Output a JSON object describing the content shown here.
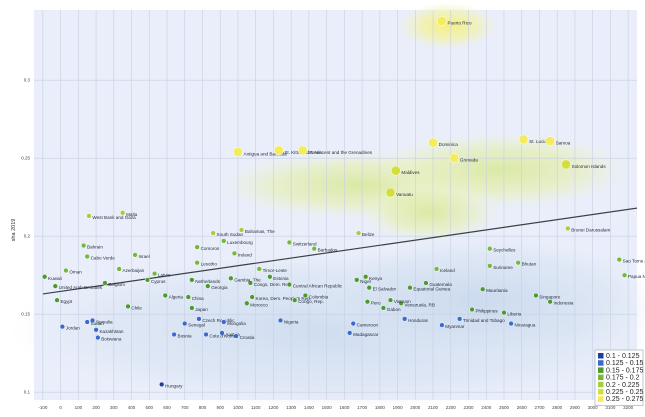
{
  "chart_data": {
    "type": "scatter",
    "ylabel": "sha 2019",
    "xlim": [
      -150,
      3250
    ],
    "ylim": [
      0.095,
      0.345
    ],
    "x_ticks": [
      "-100",
      "0",
      "100",
      "200",
      "300",
      "400",
      "500",
      "600",
      "700",
      "800",
      "900",
      "1000",
      "1100",
      "1200",
      "1300",
      "1400",
      "1500",
      "1600",
      "1700",
      "1800",
      "1900",
      "2000",
      "2100",
      "2200",
      "2300",
      "2400",
      "2500",
      "2600",
      "2700",
      "2800",
      "2900",
      "3000",
      "3100",
      "3200"
    ],
    "y_ticks": [
      "0.1",
      "0.15",
      "0.2",
      "0.25",
      "0.3"
    ],
    "trend_line": {
      "x": [
        -100,
        3250
      ],
      "y": [
        0.163,
        0.218
      ]
    },
    "legend": [
      {
        "range": "0.1 - 0.125",
        "color": "#1e3f9e"
      },
      {
        "range": "0.125 - 0.15",
        "color": "#3a6ad0"
      },
      {
        "range": "0.15 - 0.175",
        "color": "#4c9a2c"
      },
      {
        "range": "0.175 - 0.2",
        "color": "#74b83a"
      },
      {
        "range": "0.2 - 0.225",
        "color": "#a6cd3c"
      },
      {
        "range": "0.225 - 0.25",
        "color": "#d4de3a"
      },
      {
        "range": "0.25 - 0.275",
        "color": "#f4ec5c"
      }
    ],
    "series": [
      {
        "values": [
          {
            "label": "Puerto Rico",
            "x": 2150,
            "y": 0.338
          },
          {
            "label": "Antigua and Barbuda",
            "x": 1000,
            "y": 0.254
          },
          {
            "label": "St. Kitts and Nevis",
            "x": 1230,
            "y": 0.255
          },
          {
            "label": "St. Vincent and the Grenadines",
            "x": 1365,
            "y": 0.255
          },
          {
            "label": "Dominica",
            "x": 2100,
            "y": 0.26
          },
          {
            "label": "St. Lucia",
            "x": 2610,
            "y": 0.262
          },
          {
            "label": "Samoa",
            "x": 2760,
            "y": 0.261
          },
          {
            "label": "Grenada",
            "x": 2220,
            "y": 0.25
          },
          {
            "label": "Solomon Islands",
            "x": 2850,
            "y": 0.246
          },
          {
            "label": "Maldives",
            "x": 1890,
            "y": 0.242
          },
          {
            "label": "Vanuatu",
            "x": 1860,
            "y": 0.228
          },
          {
            "label": "Malta",
            "x": 350,
            "y": 0.215
          },
          {
            "label": "West Bank and Gaza",
            "x": 160,
            "y": 0.213
          },
          {
            "label": "Bahamas, The",
            "x": 1020,
            "y": 0.204
          },
          {
            "label": "South Sudan",
            "x": 860,
            "y": 0.202
          },
          {
            "label": "Belize",
            "x": 1680,
            "y": 0.202
          },
          {
            "label": "Luxembourg",
            "x": 920,
            "y": 0.197
          },
          {
            "label": "Switzerland",
            "x": 1290,
            "y": 0.196
          },
          {
            "label": "Brunei Darussalam",
            "x": 2860,
            "y": 0.205
          },
          {
            "label": "Comoros",
            "x": 770,
            "y": 0.193
          },
          {
            "label": "Bahrain",
            "x": 130,
            "y": 0.194
          },
          {
            "label": "Barbados",
            "x": 1430,
            "y": 0.192
          },
          {
            "label": "Ireland",
            "x": 980,
            "y": 0.189
          },
          {
            "label": "Seychelles",
            "x": 2420,
            "y": 0.192
          },
          {
            "label": "Cabo Verde",
            "x": 150,
            "y": 0.187
          },
          {
            "label": "Israel",
            "x": 420,
            "y": 0.188
          },
          {
            "label": "Lesotho",
            "x": 770,
            "y": 0.183
          },
          {
            "label": "Oman",
            "x": 30,
            "y": 0.178
          },
          {
            "label": "Azerbaijan",
            "x": 330,
            "y": 0.179
          },
          {
            "label": "Timor-Leste",
            "x": 1120,
            "y": 0.179
          },
          {
            "label": "Iceland",
            "x": 2120,
            "y": 0.179
          },
          {
            "label": "Bhutan",
            "x": 2580,
            "y": 0.183
          },
          {
            "label": "Suriname",
            "x": 2420,
            "y": 0.181
          },
          {
            "label": "Sao Tome and Principe",
            "x": 3150,
            "y": 0.185
          },
          {
            "label": "Kuwait",
            "x": -90,
            "y": 0.174
          },
          {
            "label": "Latvia",
            "x": 530,
            "y": 0.176
          },
          {
            "label": "Estonia",
            "x": 1180,
            "y": 0.174
          },
          {
            "label": "Papua New Guinea",
            "x": 3180,
            "y": 0.175
          },
          {
            "label": "Guatemala",
            "x": 2060,
            "y": 0.17
          },
          {
            "label": "Netherlands",
            "x": 740,
            "y": 0.172
          },
          {
            "label": "Congo, Dem. Rep.",
            "x": 1070,
            "y": 0.17
          },
          {
            "label": "Gambia, The",
            "x": 960,
            "y": 0.173
          },
          {
            "label": "Central African Republic",
            "x": 1290,
            "y": 0.169
          },
          {
            "label": "El Salvador",
            "x": 1740,
            "y": 0.167
          },
          {
            "label": "Equatorial Guinea",
            "x": 1970,
            "y": 0.167
          },
          {
            "label": "Niger",
            "x": 1670,
            "y": 0.172
          },
          {
            "label": "United Arab Emirates",
            "x": -30,
            "y": 0.168
          },
          {
            "label": "Belgium",
            "x": 250,
            "y": 0.17
          },
          {
            "label": "Mauritania",
            "x": 2380,
            "y": 0.166
          },
          {
            "label": "Cyprus",
            "x": 490,
            "y": 0.172
          },
          {
            "label": "Georgia",
            "x": 830,
            "y": 0.168
          },
          {
            "label": "Kenya",
            "x": 1720,
            "y": 0.174
          },
          {
            "label": "Singapore",
            "x": 2680,
            "y": 0.162
          },
          {
            "label": "Egypt",
            "x": -20,
            "y": 0.159
          },
          {
            "label": "Chile",
            "x": 380,
            "y": 0.155
          },
          {
            "label": "Algeria",
            "x": 590,
            "y": 0.162
          },
          {
            "label": "China",
            "x": 720,
            "y": 0.161
          },
          {
            "label": "Japan",
            "x": 740,
            "y": 0.154
          },
          {
            "label": "Korea, Dem. People's Rep.",
            "x": 1080,
            "y": 0.161
          },
          {
            "label": "Morocco",
            "x": 1050,
            "y": 0.157
          },
          {
            "label": "Congo, Rep.",
            "x": 1320,
            "y": 0.159
          },
          {
            "label": "Colombia",
            "x": 1380,
            "y": 0.162
          },
          {
            "label": "Peru",
            "x": 1730,
            "y": 0.158
          },
          {
            "label": "Gabon",
            "x": 1820,
            "y": 0.154
          },
          {
            "label": "Venezuela, RB",
            "x": 1920,
            "y": 0.157
          },
          {
            "label": "Vietnam",
            "x": 1860,
            "y": 0.159
          },
          {
            "label": "Indonesia",
            "x": 2760,
            "y": 0.158
          },
          {
            "label": "Philippines",
            "x": 2320,
            "y": 0.153
          },
          {
            "label": "Liberia",
            "x": 2500,
            "y": 0.151
          },
          {
            "label": "Somalia",
            "x": 180,
            "y": 0.146
          },
          {
            "label": "Sudan",
            "x": 150,
            "y": 0.145
          },
          {
            "label": "Senegal",
            "x": 700,
            "y": 0.144
          },
          {
            "label": "Czech Republic",
            "x": 780,
            "y": 0.147
          },
          {
            "label": "Mongolia",
            "x": 920,
            "y": 0.145
          },
          {
            "label": "Nigeria",
            "x": 1240,
            "y": 0.146
          },
          {
            "label": "Honduras",
            "x": 1940,
            "y": 0.147
          },
          {
            "label": "Trinidad and Tobago",
            "x": 2250,
            "y": 0.147
          },
          {
            "label": "Nicaragua",
            "x": 2540,
            "y": 0.144
          },
          {
            "label": "Cameroon",
            "x": 1650,
            "y": 0.144
          },
          {
            "label": "Myanmar",
            "x": 2150,
            "y": 0.143
          },
          {
            "label": "Jordan",
            "x": 10,
            "y": 0.142
          },
          {
            "label": "Kazakhstan",
            "x": 200,
            "y": 0.14
          },
          {
            "label": "Bosnia",
            "x": 640,
            "y": 0.137
          },
          {
            "label": "Austria",
            "x": 910,
            "y": 0.138
          },
          {
            "label": "Croatia",
            "x": 990,
            "y": 0.136
          },
          {
            "label": "Madagascar",
            "x": 1630,
            "y": 0.138
          },
          {
            "label": "Botswana",
            "x": 210,
            "y": 0.135
          },
          {
            "label": "Cote d'Ivoire",
            "x": 820,
            "y": 0.137
          },
          {
            "label": "Hungary",
            "x": 570,
            "y": 0.105
          }
        ]
      }
    ]
  }
}
